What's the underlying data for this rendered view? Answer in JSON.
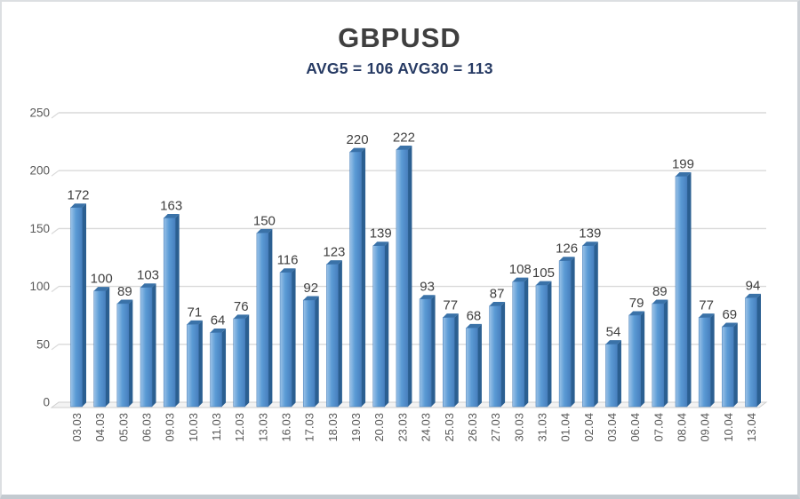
{
  "header": {
    "title": "GBPUSD",
    "subtitle": "AVG5 = 106 AVG30 = 113"
  },
  "chart_data": {
    "type": "bar",
    "style": "3d-column",
    "title": "GBPUSD",
    "subtitle": "AVG5 = 106 AVG30 = 113",
    "categories": [
      "03.03",
      "04.03",
      "05.03",
      "06.03",
      "09.03",
      "10.03",
      "11.03",
      "12.03",
      "13.03",
      "16.03",
      "17.03",
      "18.03",
      "19.03",
      "20.03",
      "23.03",
      "24.03",
      "25.03",
      "26.03",
      "27.03",
      "30.03",
      "31.03",
      "01.04",
      "02.04",
      "03.04",
      "06.04",
      "07.04",
      "08.04",
      "09.04",
      "10.04",
      "13.04"
    ],
    "values": [
      172,
      100,
      89,
      103,
      163,
      71,
      64,
      76,
      150,
      116,
      92,
      123,
      220,
      139,
      222,
      93,
      77,
      68,
      87,
      108,
      105,
      126,
      139,
      54,
      79,
      89,
      199,
      77,
      69,
      94
    ],
    "xlabel": "",
    "ylabel": "",
    "ylim": [
      0,
      250
    ],
    "yticks": [
      0,
      50,
      100,
      150,
      200,
      250
    ],
    "grid": true,
    "legend": "none",
    "colors": {
      "bar_front": "#5b9bd5",
      "bar_front_light": "#9cc3e8",
      "bar_front_dark": "#477fbe",
      "bar_edge": "#3f78b4",
      "bar_side": "#2b5f91",
      "bar_top": "#3a72a8",
      "gridline": "#d9d9d9",
      "floor_fill": "#f3f3f3",
      "floor_edge": "#cfcfcf",
      "tick_text": "#595959",
      "value_label": "#3f3f3f",
      "title_text": "#3f3f3f",
      "subtitle_text": "#263a63",
      "background": "#ffffff"
    }
  }
}
